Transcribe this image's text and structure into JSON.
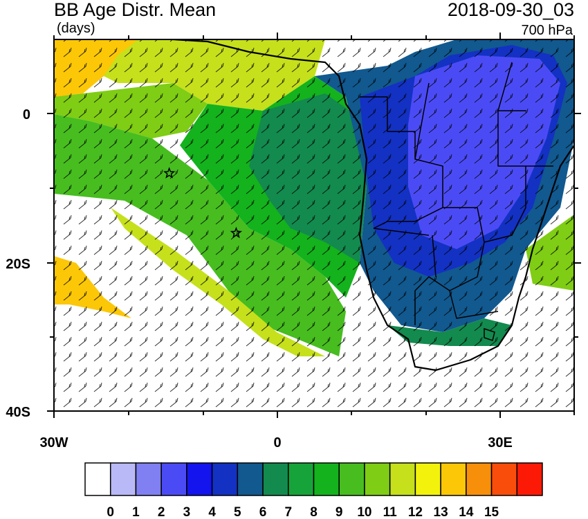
{
  "header": {
    "title": "BB Age Distr. Mean",
    "units": "(days)",
    "timestamp": "2018-09-30_03",
    "level": "700 hPa"
  },
  "axes": {
    "lat_labels": [
      "0",
      "20S",
      "40S"
    ],
    "lon_labels": [
      "30W",
      "0",
      "30E"
    ]
  },
  "colorbar": {
    "labels": [
      "0",
      "1",
      "2",
      "3",
      "4",
      "5",
      "6",
      "7",
      "8",
      "9",
      "10",
      "11",
      "12",
      "13",
      "14",
      "15"
    ],
    "colors": [
      "#ffffff",
      "#b9b9f7",
      "#8080f2",
      "#4b4bf5",
      "#1414ee",
      "#1331c2",
      "#11598f",
      "#138a4e",
      "#16a33a",
      "#14b21d",
      "#47bd20",
      "#7fcd14",
      "#c6e01c",
      "#f2f20c",
      "#fcc707",
      "#f78f0b",
      "#f94d0b",
      "#fc1a06"
    ]
  },
  "markers": [
    {
      "name": "site-star-1",
      "lon": -14.5,
      "lat": -8
    },
    {
      "name": "site-star-2",
      "lon": -5.5,
      "lat": -16
    }
  ]
}
